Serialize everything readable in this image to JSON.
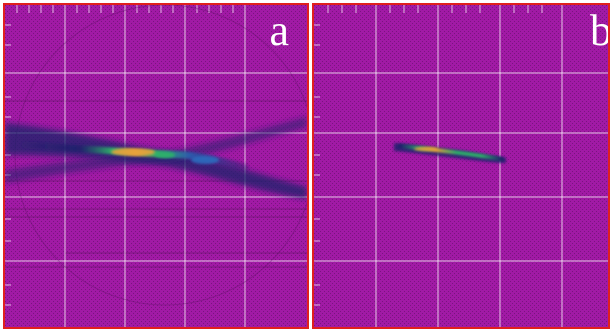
{
  "figure": {
    "panels": [
      {
        "label": "a"
      },
      {
        "label": "b"
      }
    ]
  },
  "colors": {
    "background": "#a11aa5",
    "border": "#e0201e",
    "grid": "#ffffff",
    "beam_core": "#e8a23a",
    "beam_mid": "#2fb06a",
    "beam_outer": "#1d1f6b"
  }
}
